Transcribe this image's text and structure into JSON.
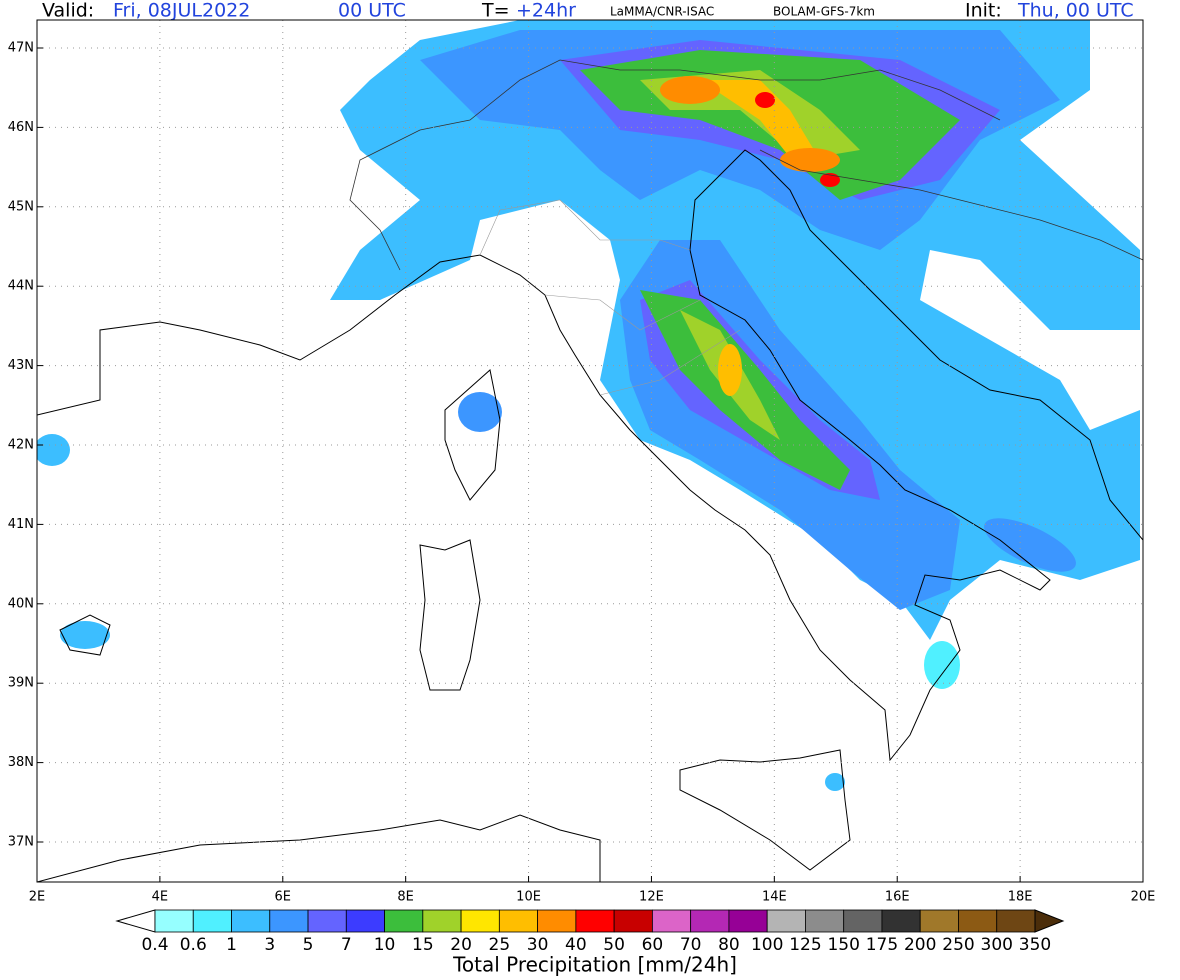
{
  "header": {
    "valid_label": "Valid:",
    "valid_date": "Fri, 08JUL2022",
    "valid_hour": "00 UTC",
    "lead_label": "T=",
    "lead": "+24hr",
    "institute": "LaMMA/CNR-ISAC",
    "model": "BOLAM-GFS-7km",
    "init_label": "Init:",
    "init": "Thu, 00 UTC"
  },
  "map": {
    "lon_labels": [
      "2E",
      "4E",
      "6E",
      "8E",
      "10E",
      "12E",
      "14E",
      "16E",
      "18E",
      "20E"
    ],
    "lat_labels": [
      "47N",
      "46N",
      "45N",
      "44N",
      "43N",
      "42N",
      "41N",
      "40N",
      "39N",
      "38N",
      "37N"
    ]
  },
  "colorbar": {
    "title": "Total Precipitation [mm/24h]",
    "labels": [
      "0.4",
      "0.6",
      "1",
      "3",
      "5",
      "7",
      "10",
      "15",
      "20",
      "25",
      "30",
      "40",
      "50",
      "60",
      "70",
      "80",
      "100",
      "125",
      "150",
      "175",
      "200",
      "250",
      "300",
      "350"
    ],
    "colors": [
      "#96ffff",
      "#50f0ff",
      "#3cbeff",
      "#3c96ff",
      "#6464ff",
      "#3c3cff",
      "#3cbe3c",
      "#a0d22a",
      "#ffe600",
      "#ffbe00",
      "#ff8c00",
      "#ff0000",
      "#c80000",
      "#dc64c8",
      "#b428b4",
      "#960096",
      "#b4b4b4",
      "#8c8c8c",
      "#646464",
      "#323232",
      "#a0782a",
      "#8c5a14",
      "#6e4614"
    ],
    "under_color": "#ffffff",
    "over_color": "#4b2d0a"
  }
}
